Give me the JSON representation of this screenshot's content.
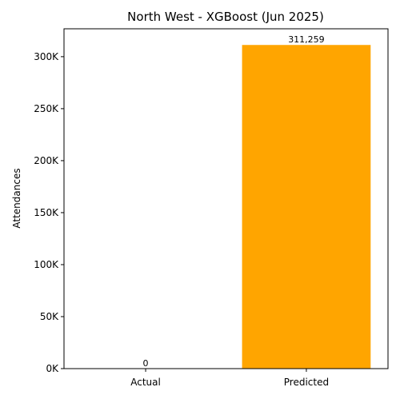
{
  "chart_data": {
    "type": "bar",
    "title": "North West - XGBoost (Jun 2025)",
    "xlabel": "",
    "ylabel": "Attendances",
    "categories": [
      "Actual",
      "Predicted"
    ],
    "values": [
      0,
      311259
    ],
    "value_labels": [
      "0",
      "311,259"
    ],
    "colors": [
      "#1f77b4",
      "#ffa500"
    ],
    "ylim": [
      0,
      326822
    ],
    "yticks": [
      0,
      50000,
      100000,
      150000,
      200000,
      250000,
      300000
    ],
    "ytick_labels": [
      "0K",
      "50K",
      "100K",
      "150K",
      "200K",
      "250K",
      "300K"
    ],
    "grid": false,
    "legend": false
  }
}
